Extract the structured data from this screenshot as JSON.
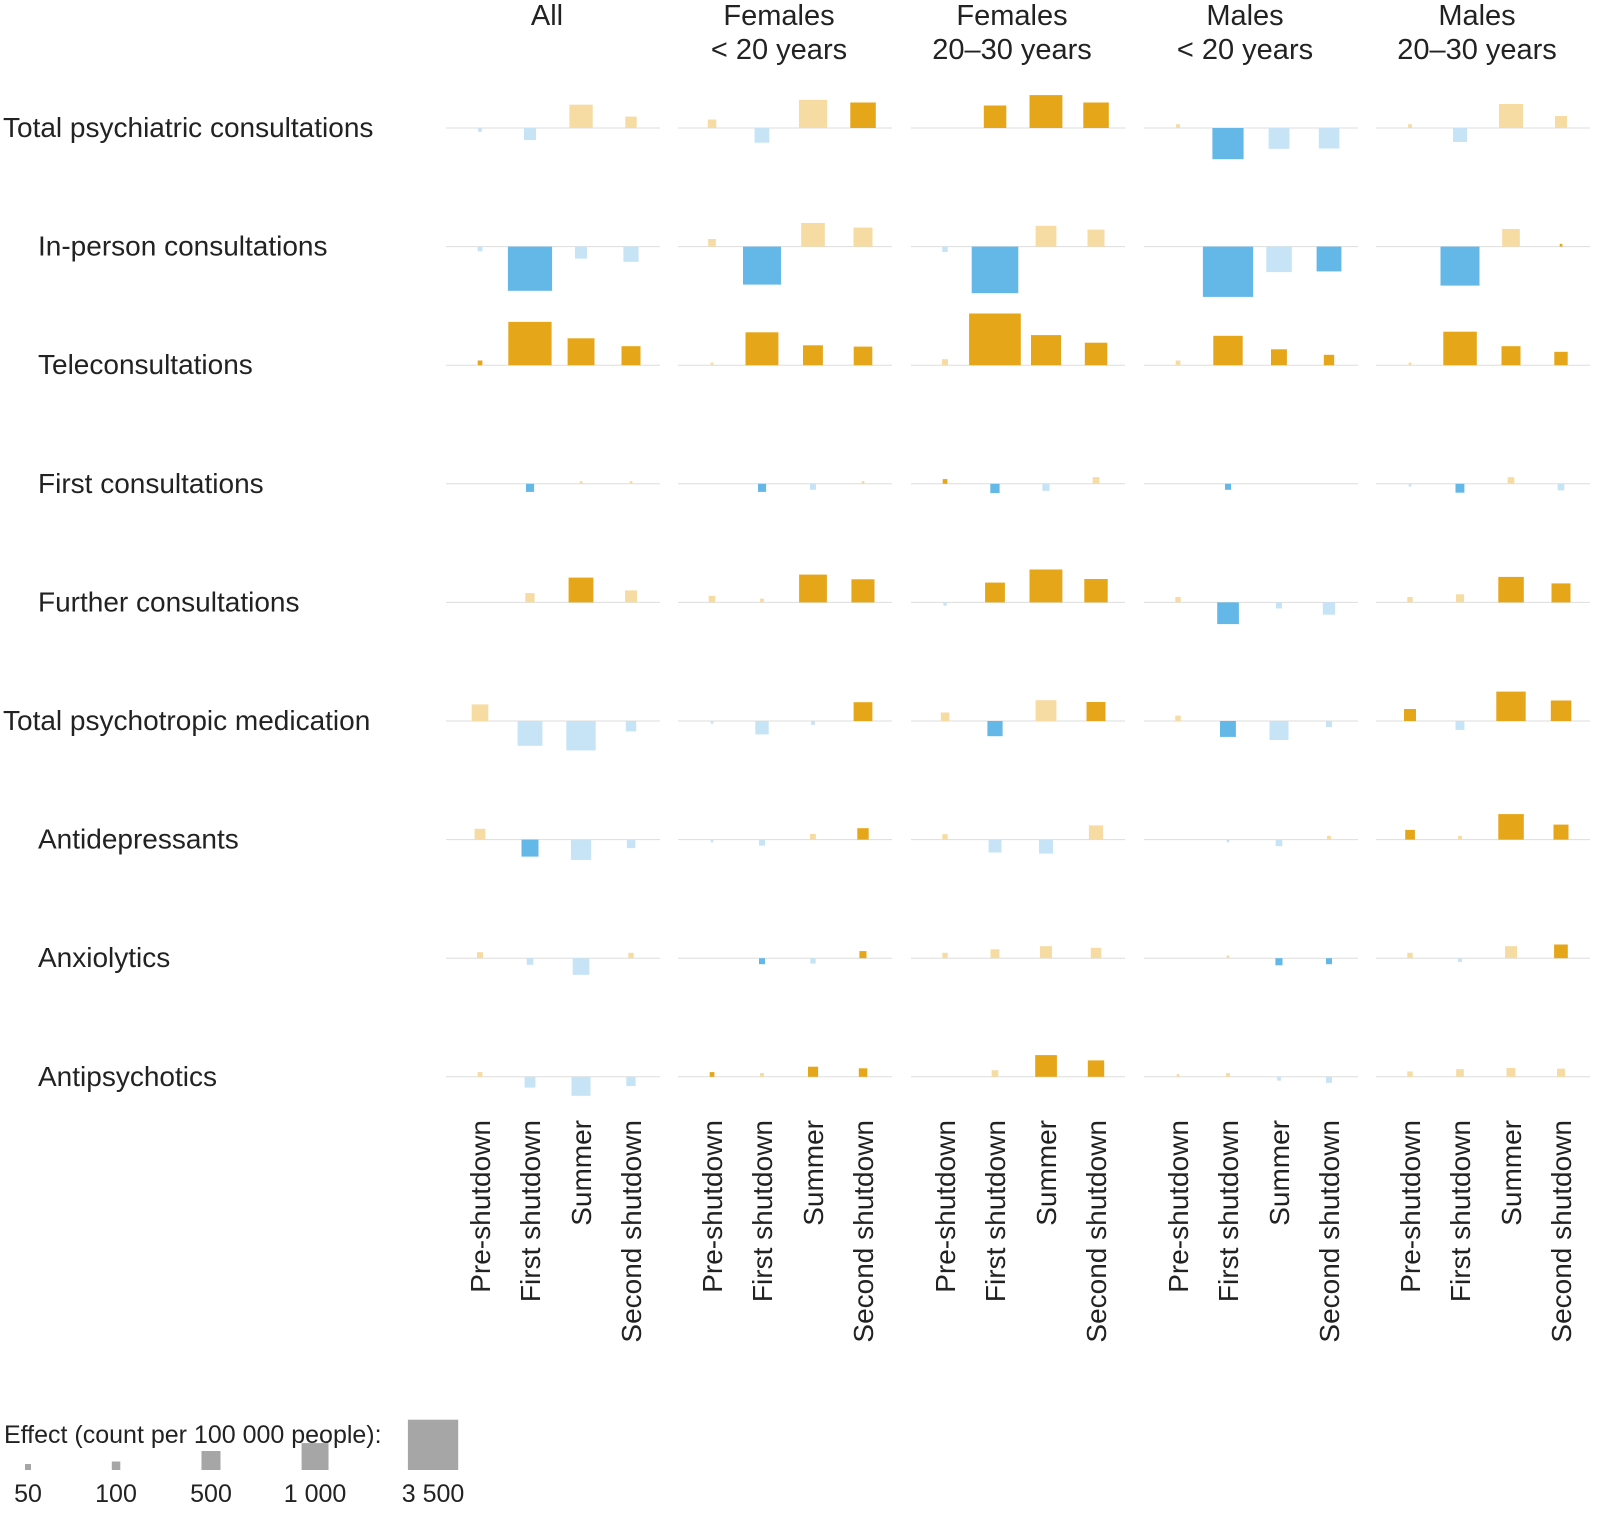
{
  "chart_data": {
    "type": "square-effect-matrix",
    "value_unit": "Effect (count per 100 000 people)",
    "encoding": "square side proportional to sqrt(|effect|); squares above baseline = increase, below = decrease; opaque = statistically significant, pale = not significant",
    "colors": {
      "increase": "#e6a619",
      "increase_pale": "#f6dba3",
      "decrease": "#63b8e8",
      "decrease_pale": "#c7e3f6",
      "baseline": "#dddddd",
      "legend": "#a6a6a6",
      "text": "#222222"
    },
    "groups": [
      {
        "title": [
          "All"
        ]
      },
      {
        "title": [
          "Females",
          "< 20 years"
        ]
      },
      {
        "title": [
          "Females",
          "20–30 years"
        ]
      },
      {
        "title": [
          "Males",
          "< 20 years"
        ]
      },
      {
        "title": [
          "Males",
          "20–30 years"
        ]
      }
    ],
    "periods": [
      "Pre-shutdown",
      "First shutdown",
      "Summer",
      "Second shutdown"
    ],
    "outcomes": [
      {
        "label": "Total psychiatric consultations",
        "indent": false
      },
      {
        "label": "In-person consultations",
        "indent": true
      },
      {
        "label": "Teleconsultations",
        "indent": true
      },
      {
        "label": "First consultations",
        "indent": true
      },
      {
        "label": "Further consultations",
        "indent": true
      },
      {
        "label": "Total psychotropic medication",
        "indent": false
      },
      {
        "label": "Antidepressants",
        "indent": true
      },
      {
        "label": "Anxiolytics",
        "indent": true
      },
      {
        "label": "Antipsychotics",
        "indent": true
      }
    ],
    "effects": [
      [
        [
          [
            -20,
            0
          ],
          [
            -200,
            0
          ],
          [
            750,
            0
          ],
          [
            180,
            0
          ]
        ],
        [
          [
            100,
            0
          ],
          [
            -300,
            0
          ],
          [
            1100,
            0
          ],
          [
            900,
            1
          ]
        ],
        [
          [
            0,
            0
          ],
          [
            700,
            1
          ],
          [
            1500,
            1
          ],
          [
            900,
            1
          ]
        ],
        [
          [
            20,
            0
          ],
          [
            -1350,
            1
          ],
          [
            -600,
            0
          ],
          [
            -580,
            0
          ]
        ],
        [
          [
            20,
            0
          ],
          [
            -270,
            0
          ],
          [
            800,
            0
          ],
          [
            200,
            0
          ]
        ]
      ],
      [
        [
          [
            -30,
            0
          ],
          [
            -2700,
            1
          ],
          [
            -200,
            0
          ],
          [
            -320,
            0
          ]
        ],
        [
          [
            80,
            0
          ],
          [
            -2000,
            1
          ],
          [
            770,
            0
          ],
          [
            500,
            0
          ]
        ],
        [
          [
            -40,
            0
          ],
          [
            -3000,
            1
          ],
          [
            600,
            0
          ],
          [
            400,
            0
          ]
        ],
        [
          [
            0,
            0
          ],
          [
            -3500,
            1
          ],
          [
            -900,
            0
          ],
          [
            -850,
            1
          ]
        ],
        [
          [
            0,
            0
          ],
          [
            -2100,
            1
          ],
          [
            430,
            0
          ],
          [
            10,
            1
          ]
        ]
      ],
      [
        [
          [
            30,
            1
          ],
          [
            2600,
            1
          ],
          [
            1000,
            1
          ],
          [
            500,
            1
          ]
        ],
        [
          [
            10,
            0
          ],
          [
            1500,
            1
          ],
          [
            550,
            1
          ],
          [
            480,
            1
          ]
        ],
        [
          [
            50,
            0
          ],
          [
            3700,
            1
          ],
          [
            1250,
            1
          ],
          [
            700,
            1
          ]
        ],
        [
          [
            30,
            0
          ],
          [
            1200,
            1
          ],
          [
            350,
            1
          ],
          [
            150,
            1
          ]
        ],
        [
          [
            10,
            0
          ],
          [
            1550,
            1
          ],
          [
            500,
            1
          ],
          [
            250,
            1
          ]
        ]
      ],
      [
        [
          [
            0,
            0
          ],
          [
            -90,
            1
          ],
          [
            10,
            0
          ],
          [
            10,
            0
          ]
        ],
        [
          [
            0,
            0
          ],
          [
            -90,
            1
          ],
          [
            -50,
            0
          ],
          [
            10,
            0
          ]
        ],
        [
          [
            30,
            1
          ],
          [
            -120,
            1
          ],
          [
            -70,
            0
          ],
          [
            60,
            0
          ]
        ],
        [
          [
            0,
            0
          ],
          [
            -50,
            1
          ],
          [
            0,
            0
          ],
          [
            0,
            0
          ]
        ],
        [
          [
            -10,
            0
          ],
          [
            -110,
            1
          ],
          [
            60,
            0
          ],
          [
            -60,
            0
          ]
        ]
      ],
      [
        [
          [
            0,
            0
          ],
          [
            120,
            0
          ],
          [
            850,
            1
          ],
          [
            200,
            0
          ]
        ],
        [
          [
            60,
            0
          ],
          [
            20,
            0
          ],
          [
            1070,
            1
          ],
          [
            740,
            1
          ]
        ],
        [
          [
            -15,
            0
          ],
          [
            540,
            1
          ],
          [
            1500,
            1
          ],
          [
            760,
            1
          ]
        ],
        [
          [
            40,
            0
          ],
          [
            -650,
            1
          ],
          [
            -50,
            0
          ],
          [
            -210,
            0
          ]
        ],
        [
          [
            40,
            0
          ],
          [
            90,
            0
          ],
          [
            900,
            1
          ],
          [
            500,
            1
          ]
        ]
      ],
      [
        [
          [
            380,
            0
          ],
          [
            -850,
            0
          ],
          [
            -1200,
            0
          ],
          [
            -150,
            0
          ]
        ],
        [
          [
            -10,
            0
          ],
          [
            -250,
            0
          ],
          [
            -20,
            0
          ],
          [
            490,
            1
          ]
        ],
        [
          [
            100,
            0
          ],
          [
            -320,
            1
          ],
          [
            600,
            0
          ],
          [
            500,
            1
          ]
        ],
        [
          [
            40,
            0
          ],
          [
            -350,
            1
          ],
          [
            -500,
            0
          ],
          [
            -50,
            0
          ]
        ],
        [
          [
            200,
            1
          ],
          [
            -110,
            0
          ],
          [
            1200,
            1
          ],
          [
            580,
            1
          ]
        ]
      ],
      [
        [
          [
            160,
            0
          ],
          [
            -400,
            1
          ],
          [
            -570,
            0
          ],
          [
            -100,
            0
          ]
        ],
        [
          [
            -10,
            0
          ],
          [
            -50,
            0
          ],
          [
            45,
            0
          ],
          [
            180,
            1
          ]
        ],
        [
          [
            40,
            0
          ],
          [
            -230,
            0
          ],
          [
            -270,
            0
          ],
          [
            280,
            0
          ]
        ],
        [
          [
            0,
            0
          ],
          [
            -10,
            0
          ],
          [
            -60,
            0
          ],
          [
            20,
            0
          ]
        ],
        [
          [
            130,
            1
          ],
          [
            20,
            0
          ],
          [
            900,
            1
          ],
          [
            310,
            1
          ]
        ]
      ],
      [
        [
          [
            50,
            0
          ],
          [
            -60,
            0
          ],
          [
            -380,
            0
          ],
          [
            40,
            0
          ]
        ],
        [
          [
            0,
            0
          ],
          [
            -50,
            1
          ],
          [
            -40,
            0
          ],
          [
            70,
            1
          ]
        ],
        [
          [
            40,
            0
          ],
          [
            110,
            0
          ],
          [
            200,
            0
          ],
          [
            150,
            0
          ]
        ],
        [
          [
            0,
            0
          ],
          [
            10,
            0
          ],
          [
            -70,
            1
          ],
          [
            -50,
            1
          ]
        ],
        [
          [
            40,
            0
          ],
          [
            -20,
            0
          ],
          [
            200,
            0
          ],
          [
            260,
            1
          ]
        ]
      ],
      [
        [
          [
            30,
            0
          ],
          [
            -160,
            0
          ],
          [
            -500,
            0
          ],
          [
            -120,
            0
          ]
        ],
        [
          [
            30,
            1
          ],
          [
            20,
            0
          ],
          [
            140,
            1
          ],
          [
            100,
            1
          ]
        ],
        [
          [
            0,
            0
          ],
          [
            60,
            0
          ],
          [
            650,
            1
          ],
          [
            370,
            1
          ]
        ],
        [
          [
            10,
            0
          ],
          [
            20,
            0
          ],
          [
            -20,
            0
          ],
          [
            -50,
            0
          ]
        ],
        [
          [
            40,
            0
          ],
          [
            80,
            0
          ],
          [
            110,
            0
          ],
          [
            90,
            0
          ]
        ]
      ]
    ],
    "legend": {
      "title": "Effect (count per 100 000 people):",
      "values": [
        50,
        100,
        500,
        1000,
        3500
      ],
      "labels": [
        "50",
        "100",
        "500",
        "1 000",
        "3 500"
      ]
    }
  }
}
